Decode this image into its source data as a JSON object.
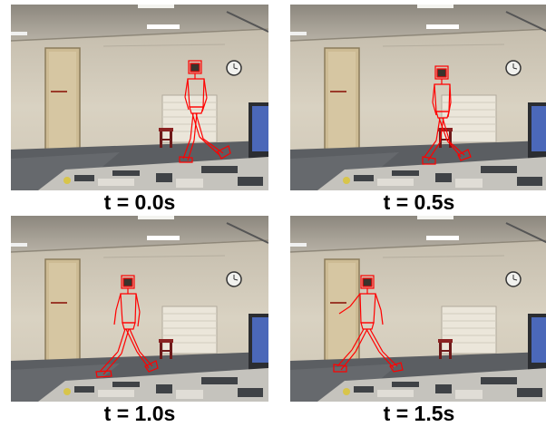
{
  "frames": [
    {
      "caption": "t = 0.0s",
      "pose": "stride-a"
    },
    {
      "caption": "t = 0.5s",
      "pose": "stride-b"
    },
    {
      "caption": "t = 1.0s",
      "pose": "stride-c"
    },
    {
      "caption": "t = 1.5s",
      "pose": "stride-d"
    }
  ],
  "colors": {
    "skeleton": "#ff0000",
    "wall": "#ddd6c6",
    "floor": "#5b5e62",
    "door": "#cdbb94",
    "stool": "#8a2222"
  }
}
